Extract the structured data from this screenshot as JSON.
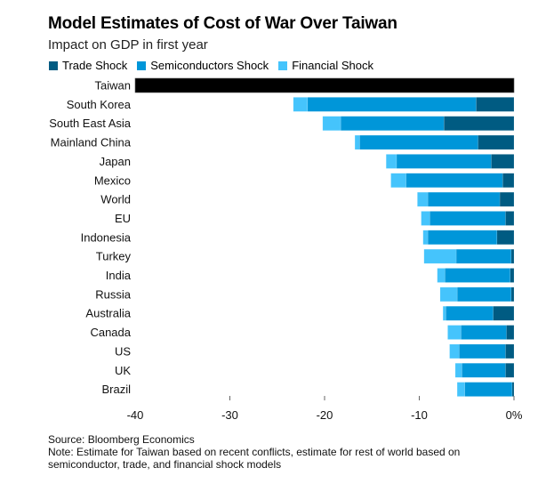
{
  "chart_data": {
    "type": "bar",
    "orientation": "horizontal",
    "stacked": true,
    "title": "Model Estimates of Cost of War Over Taiwan",
    "subtitle": "Impact on GDP in first year",
    "xlabel": "",
    "ylabel": "",
    "xlim": [
      -40,
      0
    ],
    "xticks": [
      -40,
      -30,
      -20,
      -10,
      0
    ],
    "xtick_labels": [
      "-40",
      "-30",
      "-20",
      "-10",
      "0%"
    ],
    "grid": false,
    "legend_position": "top-left",
    "categories": [
      "Taiwan",
      "South Korea",
      "South East Asia",
      "Mainland China",
      "Japan",
      "Mexico",
      "World",
      "EU",
      "Indonesia",
      "Turkey",
      "India",
      "Russia",
      "Australia",
      "Canada",
      "US",
      "UK",
      "Brazil"
    ],
    "taiwan_total": {
      "name": "Taiwan (total estimate)",
      "value": -40.0,
      "color": "#000000"
    },
    "series": [
      {
        "name": "Trade Shock",
        "color": "#005b82",
        "values": [
          0,
          -4.0,
          -7.4,
          -3.8,
          -2.4,
          -1.2,
          -1.5,
          -0.9,
          -1.8,
          -0.3,
          -0.4,
          -0.3,
          -2.2,
          -0.8,
          -0.9,
          -0.9,
          -0.2
        ]
      },
      {
        "name": "Semiconductors Shock",
        "color": "#0096d9",
        "values": [
          0,
          -17.8,
          -10.9,
          -12.5,
          -10.0,
          -10.2,
          -7.6,
          -8.0,
          -7.3,
          -5.8,
          -6.9,
          -5.7,
          -5.0,
          -4.8,
          -4.9,
          -4.6,
          -5.0
        ]
      },
      {
        "name": "Financial Shock",
        "color": "#45c4fc",
        "values": [
          0,
          -1.5,
          -1.9,
          -0.5,
          -1.1,
          -1.6,
          -1.1,
          -0.9,
          -0.5,
          -3.4,
          -0.8,
          -1.8,
          -0.3,
          -1.4,
          -1.0,
          -0.7,
          -0.8
        ]
      }
    ]
  },
  "footer": {
    "source": "Source: Bloomberg Economics",
    "note": "Note: Estimate for Taiwan based on recent conflicts, estimate for rest of world based on semiconductor, trade, and financial shock models"
  }
}
